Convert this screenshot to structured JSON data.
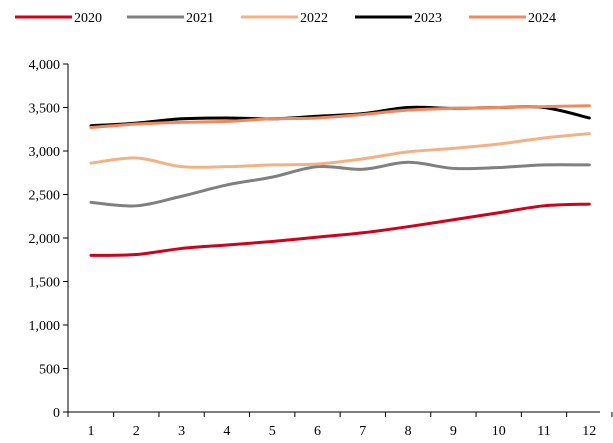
{
  "chart_data": {
    "type": "line",
    "title": "",
    "xlabel": "",
    "ylabel": "",
    "categories": [
      "1",
      "2",
      "3",
      "4",
      "5",
      "6",
      "7",
      "8",
      "9",
      "10",
      "11",
      "12"
    ],
    "y_ticks": [
      "0",
      "500",
      "1,000",
      "1,500",
      "2,000",
      "2,500",
      "3,000",
      "3,500",
      "4,000"
    ],
    "ylim": [
      0,
      4000
    ],
    "grid": false,
    "legend_position": "top",
    "series": [
      {
        "name": "2020",
        "color": "#d0021b",
        "values": [
          1800,
          1810,
          1880,
          1920,
          1960,
          2010,
          2060,
          2130,
          2210,
          2290,
          2370,
          2390
        ]
      },
      {
        "name": "2021",
        "color": "#808080",
        "values": [
          2410,
          2370,
          2480,
          2610,
          2700,
          2820,
          2790,
          2870,
          2800,
          2810,
          2840,
          2840
        ]
      },
      {
        "name": "2022",
        "color": "#f2b285",
        "values": [
          2860,
          2920,
          2820,
          2820,
          2840,
          2850,
          2910,
          2990,
          3030,
          3080,
          3150,
          3200
        ]
      },
      {
        "name": "2023",
        "color": "#000000",
        "values": [
          3290,
          3320,
          3370,
          3380,
          3370,
          3400,
          3430,
          3500,
          3490,
          3500,
          3500,
          3380
        ]
      },
      {
        "name": "2024",
        "color": "#f2885f",
        "values": [
          3270,
          3310,
          3330,
          3340,
          3370,
          3380,
          3420,
          3470,
          3490,
          3500,
          3510,
          3520
        ]
      }
    ]
  }
}
